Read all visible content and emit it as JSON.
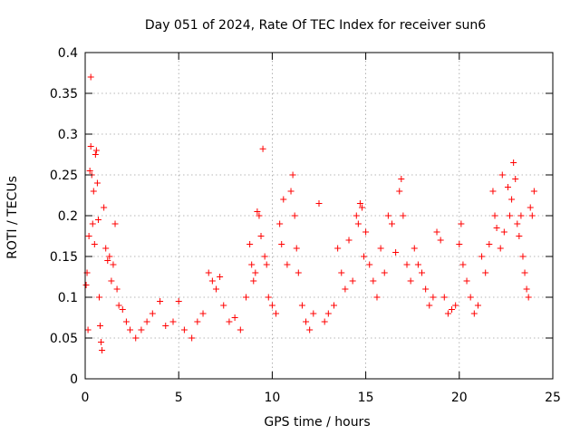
{
  "chart_data": {
    "type": "scatter",
    "title": "Day 051 of 2024, Rate Of TEC Index for receiver sun6",
    "xlabel": "GPS time / hours",
    "ylabel": "ROTI / TECUs",
    "xlim": [
      0,
      25
    ],
    "ylim": [
      0,
      0.4
    ],
    "xticks": [
      0,
      5,
      10,
      15,
      20,
      25
    ],
    "yticks": [
      0,
      0.05,
      0.1,
      0.15,
      0.2,
      0.25,
      0.3,
      0.35,
      0.4
    ],
    "xtick_labels": [
      "0",
      "5",
      "10",
      "15",
      "20",
      "25"
    ],
    "ytick_labels": [
      "0",
      "0.05",
      "0.1",
      "0.15",
      "0.2",
      "0.25",
      "0.3",
      "0.35",
      "0.4"
    ],
    "grid": true,
    "marker": "+",
    "color": "#ff0000",
    "series": [
      {
        "points": [
          [
            0.05,
            0.115
          ],
          [
            0.1,
            0.13
          ],
          [
            0.15,
            0.06
          ],
          [
            0.2,
            0.175
          ],
          [
            0.25,
            0.255
          ],
          [
            0.3,
            0.285
          ],
          [
            0.3,
            0.37
          ],
          [
            0.35,
            0.25
          ],
          [
            0.4,
            0.19
          ],
          [
            0.45,
            0.23
          ],
          [
            0.5,
            0.165
          ],
          [
            0.55,
            0.275
          ],
          [
            0.6,
            0.28
          ],
          [
            0.65,
            0.24
          ],
          [
            0.7,
            0.195
          ],
          [
            0.75,
            0.1
          ],
          [
            0.8,
            0.065
          ],
          [
            0.85,
            0.045
          ],
          [
            0.9,
            0.035
          ],
          [
            1.0,
            0.21
          ],
          [
            1.1,
            0.16
          ],
          [
            1.2,
            0.145
          ],
          [
            1.3,
            0.15
          ],
          [
            1.4,
            0.12
          ],
          [
            1.5,
            0.14
          ],
          [
            1.6,
            0.19
          ],
          [
            1.7,
            0.11
          ],
          [
            1.8,
            0.09
          ],
          [
            2.0,
            0.085
          ],
          [
            2.2,
            0.07
          ],
          [
            2.4,
            0.06
          ],
          [
            2.7,
            0.05
          ],
          [
            3.0,
            0.06
          ],
          [
            3.3,
            0.07
          ],
          [
            3.6,
            0.08
          ],
          [
            4.0,
            0.095
          ],
          [
            4.3,
            0.065
          ],
          [
            4.7,
            0.07
          ],
          [
            5.0,
            0.095
          ],
          [
            5.3,
            0.06
          ],
          [
            5.7,
            0.05
          ],
          [
            6.0,
            0.07
          ],
          [
            6.3,
            0.08
          ],
          [
            6.6,
            0.13
          ],
          [
            6.8,
            0.12
          ],
          [
            7.0,
            0.11
          ],
          [
            7.2,
            0.125
          ],
          [
            7.4,
            0.09
          ],
          [
            7.7,
            0.07
          ],
          [
            8.0,
            0.075
          ],
          [
            8.3,
            0.06
          ],
          [
            8.6,
            0.1
          ],
          [
            8.8,
            0.165
          ],
          [
            8.9,
            0.14
          ],
          [
            9.0,
            0.12
          ],
          [
            9.1,
            0.13
          ],
          [
            9.2,
            0.205
          ],
          [
            9.3,
            0.2
          ],
          [
            9.4,
            0.175
          ],
          [
            9.5,
            0.282
          ],
          [
            9.6,
            0.15
          ],
          [
            9.7,
            0.14
          ],
          [
            9.8,
            0.1
          ],
          [
            10.0,
            0.09
          ],
          [
            10.2,
            0.08
          ],
          [
            10.4,
            0.19
          ],
          [
            10.5,
            0.165
          ],
          [
            10.6,
            0.22
          ],
          [
            10.8,
            0.14
          ],
          [
            11.0,
            0.23
          ],
          [
            11.1,
            0.25
          ],
          [
            11.2,
            0.2
          ],
          [
            11.3,
            0.16
          ],
          [
            11.4,
            0.13
          ],
          [
            11.6,
            0.09
          ],
          [
            11.8,
            0.07
          ],
          [
            12.0,
            0.06
          ],
          [
            12.2,
            0.08
          ],
          [
            12.5,
            0.215
          ],
          [
            12.8,
            0.07
          ],
          [
            13.0,
            0.08
          ],
          [
            13.3,
            0.09
          ],
          [
            13.5,
            0.16
          ],
          [
            13.7,
            0.13
          ],
          [
            13.9,
            0.11
          ],
          [
            14.1,
            0.17
          ],
          [
            14.3,
            0.12
          ],
          [
            14.5,
            0.2
          ],
          [
            14.6,
            0.19
          ],
          [
            14.7,
            0.215
          ],
          [
            14.8,
            0.21
          ],
          [
            14.9,
            0.15
          ],
          [
            15.0,
            0.18
          ],
          [
            15.2,
            0.14
          ],
          [
            15.4,
            0.12
          ],
          [
            15.6,
            0.1
          ],
          [
            15.8,
            0.16
          ],
          [
            16.0,
            0.13
          ],
          [
            16.2,
            0.2
          ],
          [
            16.4,
            0.19
          ],
          [
            16.6,
            0.155
          ],
          [
            16.8,
            0.23
          ],
          [
            16.9,
            0.245
          ],
          [
            17.0,
            0.2
          ],
          [
            17.2,
            0.14
          ],
          [
            17.4,
            0.12
          ],
          [
            17.6,
            0.16
          ],
          [
            17.8,
            0.14
          ],
          [
            18.0,
            0.13
          ],
          [
            18.2,
            0.11
          ],
          [
            18.4,
            0.09
          ],
          [
            18.6,
            0.1
          ],
          [
            18.8,
            0.18
          ],
          [
            19.0,
            0.17
          ],
          [
            19.2,
            0.1
          ],
          [
            19.4,
            0.08
          ],
          [
            19.6,
            0.085
          ],
          [
            19.8,
            0.09
          ],
          [
            20.0,
            0.165
          ],
          [
            20.1,
            0.19
          ],
          [
            20.2,
            0.14
          ],
          [
            20.4,
            0.12
          ],
          [
            20.6,
            0.1
          ],
          [
            20.8,
            0.08
          ],
          [
            21.0,
            0.09
          ],
          [
            21.2,
            0.15
          ],
          [
            21.4,
            0.13
          ],
          [
            21.6,
            0.165
          ],
          [
            21.8,
            0.23
          ],
          [
            21.9,
            0.2
          ],
          [
            22.0,
            0.185
          ],
          [
            22.2,
            0.16
          ],
          [
            22.3,
            0.25
          ],
          [
            22.4,
            0.18
          ],
          [
            22.6,
            0.235
          ],
          [
            22.7,
            0.2
          ],
          [
            22.8,
            0.22
          ],
          [
            22.9,
            0.265
          ],
          [
            23.0,
            0.245
          ],
          [
            23.1,
            0.19
          ],
          [
            23.2,
            0.175
          ],
          [
            23.3,
            0.2
          ],
          [
            23.4,
            0.15
          ],
          [
            23.5,
            0.13
          ],
          [
            23.6,
            0.11
          ],
          [
            23.7,
            0.1
          ],
          [
            23.8,
            0.21
          ],
          [
            23.9,
            0.2
          ],
          [
            24.0,
            0.23
          ]
        ]
      }
    ]
  }
}
